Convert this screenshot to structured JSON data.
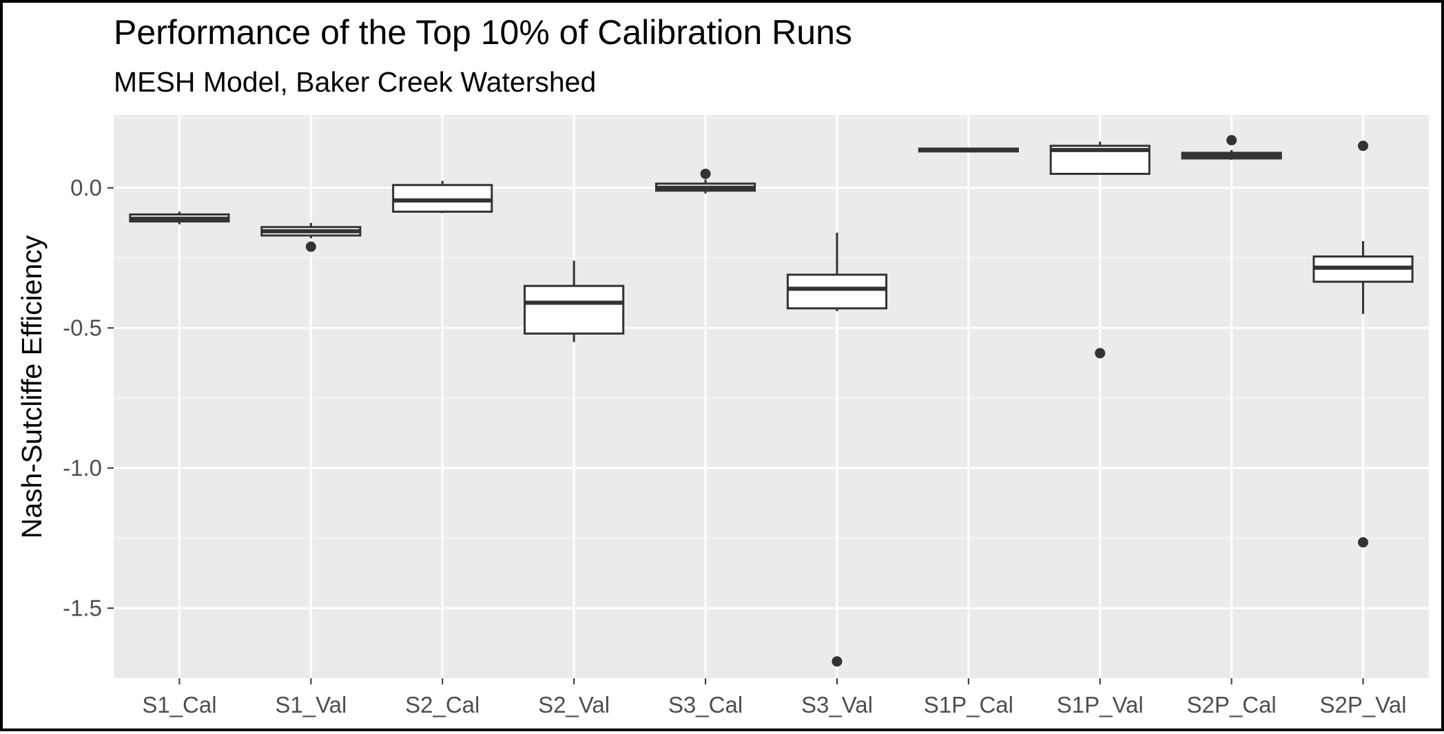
{
  "chart_data": {
    "type": "boxplot",
    "title": "Performance of the Top 10% of Calibration Runs",
    "subtitle": "MESH Model, Baker Creek Watershed",
    "xlabel": "",
    "ylabel": "Nash-Sutcliffe Efficiency",
    "ylim": [
      -1.75,
      0.26
    ],
    "yticks": [
      0.0,
      -0.5,
      -1.0,
      -1.5
    ],
    "ytick_labels": [
      "0.0",
      "-0.5",
      "-1.0",
      "-1.5"
    ],
    "grid": true,
    "legend": "none",
    "categories": [
      "S1_Cal",
      "S1_Val",
      "S2_Cal",
      "S2_Val",
      "S3_Cal",
      "S3_Val",
      "S1P_Cal",
      "S1P_Val",
      "S2P_Cal",
      "S2P_Val"
    ],
    "boxes": [
      {
        "category": "S1_Cal",
        "whisker_low": -0.13,
        "q1": -0.12,
        "median": -0.11,
        "q3": -0.095,
        "whisker_high": -0.085,
        "outliers": []
      },
      {
        "category": "S1_Val",
        "whisker_low": -0.18,
        "q1": -0.17,
        "median": -0.155,
        "q3": -0.14,
        "whisker_high": -0.125,
        "outliers": [
          -0.21
        ]
      },
      {
        "category": "S2_Cal",
        "whisker_low": -0.09,
        "q1": -0.085,
        "median": -0.045,
        "q3": 0.01,
        "whisker_high": 0.025,
        "outliers": []
      },
      {
        "category": "S2_Val",
        "whisker_low": -0.55,
        "q1": -0.52,
        "median": -0.41,
        "q3": -0.35,
        "whisker_high": -0.26,
        "outliers": []
      },
      {
        "category": "S3_Cal",
        "whisker_low": -0.02,
        "q1": -0.01,
        "median": 0.0,
        "q3": 0.015,
        "whisker_high": 0.03,
        "outliers": [
          0.05
        ]
      },
      {
        "category": "S3_Val",
        "whisker_low": -0.44,
        "q1": -0.43,
        "median": -0.36,
        "q3": -0.31,
        "whisker_high": -0.16,
        "outliers": [
          -1.69
        ]
      },
      {
        "category": "S1P_Cal",
        "whisker_low": 0.127,
        "q1": 0.13,
        "median": 0.135,
        "q3": 0.14,
        "whisker_high": 0.143,
        "outliers": []
      },
      {
        "category": "S1P_Val",
        "whisker_low": 0.05,
        "q1": 0.05,
        "median": 0.135,
        "q3": 0.15,
        "whisker_high": 0.165,
        "outliers": [
          -0.59
        ]
      },
      {
        "category": "S2P_Cal",
        "whisker_low": 0.1,
        "q1": 0.105,
        "median": 0.115,
        "q3": 0.125,
        "whisker_high": 0.135,
        "outliers": [
          0.17
        ]
      },
      {
        "category": "S2P_Val",
        "whisker_low": -0.45,
        "q1": -0.335,
        "median": -0.285,
        "q3": -0.245,
        "whisker_high": -0.19,
        "outliers": [
          0.15,
          -1.265
        ]
      }
    ],
    "colors": {
      "panel_background": "#ebebeb",
      "major_grid": "#ffffff",
      "minor_grid": "#f5f5f5",
      "box_fill": "#ffffff",
      "box_stroke": "#333333",
      "outlier": "#333333",
      "tick_label": "#4d4d4d",
      "title": "#000000"
    }
  }
}
